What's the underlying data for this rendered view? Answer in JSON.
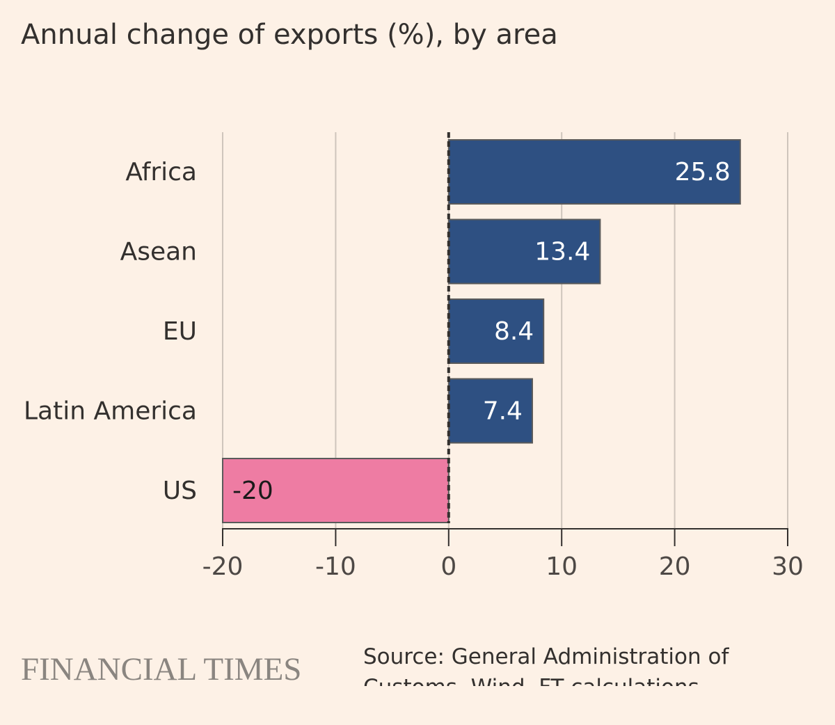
{
  "chart_data": {
    "type": "barh",
    "title": "Annual change of exports (%), by area",
    "categories": [
      "Africa",
      "Asean",
      "EU",
      "Latin America",
      "US"
    ],
    "values": [
      25.8,
      13.4,
      8.4,
      7.4,
      -20
    ],
    "colors": [
      "#2e5082",
      "#2e5082",
      "#2e5082",
      "#2e5082",
      "#ee7ca3"
    ],
    "xlim": [
      -20,
      30
    ],
    "xticks": [
      -20,
      -10,
      0,
      10,
      20,
      30
    ],
    "grid": true,
    "brand": "FINANCIAL TIMES",
    "source": "Source: General Administration of Customs, Wind, FT calculations"
  }
}
